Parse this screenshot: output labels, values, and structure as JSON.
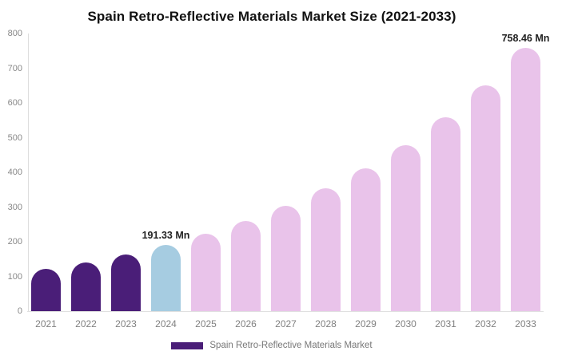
{
  "chart_data": {
    "type": "bar",
    "title": "Spain Retro-Reflective Materials Market Size (2021-2033)",
    "unit": "Mn",
    "categories": [
      "2021",
      "2022",
      "2023",
      "2024",
      "2025",
      "2026",
      "2027",
      "2028",
      "2029",
      "2030",
      "2031",
      "2032",
      "2033"
    ],
    "values": [
      120.9,
      140.9,
      164.2,
      191.33,
      223.0,
      259.9,
      302.9,
      353.0,
      411.3,
      479.4,
      558.7,
      651.1,
      758.46
    ],
    "bar_colors": [
      "#4A1E78",
      "#4A1E78",
      "#4A1E78",
      "#A6CCE1",
      "#E9C3EA",
      "#E9C3EA",
      "#E9C3EA",
      "#E9C3EA",
      "#E9C3EA",
      "#E9C3EA",
      "#E9C3EA",
      "#E9C3EA",
      "#E9C3EA"
    ],
    "value_labels": [
      {
        "category": "2024",
        "text": "191.33 Mn"
      },
      {
        "category": "2033",
        "text": "758.46 Mn"
      }
    ],
    "ylim": [
      0,
      800
    ],
    "yticks": [
      0,
      100,
      200,
      300,
      400,
      500,
      600,
      700,
      800
    ],
    "grid": false,
    "legend": {
      "position": "bottom",
      "label": "Spain Retro-Reflective Materials Market",
      "swatch_color": "#4A1E78"
    }
  },
  "colors": {
    "title": "#111111",
    "axis_line": "#dddddd",
    "y_tick_label": "#888888",
    "x_tick_label": "#808080",
    "value_label": "#222222",
    "legend_text": "#777777",
    "background": "#ffffff"
  }
}
